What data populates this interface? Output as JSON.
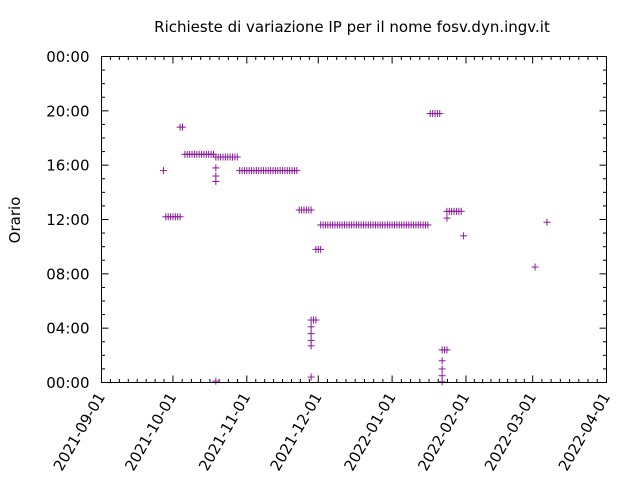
{
  "chart_data": {
    "type": "scatter",
    "title": "Richieste di variazione IP per il nome fosv.dyn.ingv.it",
    "xlabel": "",
    "ylabel": "Orario",
    "marker": "+",
    "marker_color": "#8b1a9b",
    "grid": false,
    "xlim": [
      "2021-09-01",
      "2022-04-01"
    ],
    "ylim": [
      "00:00",
      "24:00"
    ],
    "x_ticks": [
      "2021-09-01",
      "2021-10-01",
      "2021-11-01",
      "2021-12-01",
      "2022-01-01",
      "2022-02-01",
      "2022-03-01",
      "2022-04-01"
    ],
    "y_ticks": [
      "00:00",
      "04:00",
      "08:00",
      "12:00",
      "16:00",
      "20:00",
      "00:00"
    ],
    "points": [
      [
        "2021-09-27",
        15.6
      ],
      [
        "2021-09-28",
        12.2
      ],
      [
        "2021-09-29",
        12.2
      ],
      [
        "2021-09-30",
        12.2
      ],
      [
        "2021-10-01",
        12.2
      ],
      [
        "2021-10-02",
        12.2
      ],
      [
        "2021-10-03",
        12.2
      ],
      [
        "2021-10-04",
        12.2
      ],
      [
        "2021-10-04",
        18.8
      ],
      [
        "2021-10-05",
        18.8
      ],
      [
        "2021-10-06",
        16.8
      ],
      [
        "2021-10-07",
        16.8
      ],
      [
        "2021-10-08",
        16.8
      ],
      [
        "2021-10-09",
        16.8
      ],
      [
        "2021-10-10",
        16.8
      ],
      [
        "2021-10-11",
        16.8
      ],
      [
        "2021-10-12",
        16.8
      ],
      [
        "2021-10-13",
        16.8
      ],
      [
        "2021-10-14",
        16.8
      ],
      [
        "2021-10-15",
        16.8
      ],
      [
        "2021-10-16",
        16.8
      ],
      [
        "2021-10-17",
        16.8
      ],
      [
        "2021-10-18",
        16.8
      ],
      [
        "2021-10-19",
        16.6
      ],
      [
        "2021-10-20",
        16.6
      ],
      [
        "2021-10-21",
        16.6
      ],
      [
        "2021-10-22",
        16.6
      ],
      [
        "2021-10-23",
        16.6
      ],
      [
        "2021-10-24",
        16.6
      ],
      [
        "2021-10-25",
        16.6
      ],
      [
        "2021-10-26",
        16.6
      ],
      [
        "2021-10-27",
        16.6
      ],
      [
        "2021-10-28",
        16.6
      ],
      [
        "2021-10-19",
        15.8
      ],
      [
        "2021-10-19",
        15.2
      ],
      [
        "2021-10-19",
        14.8
      ],
      [
        "2021-10-19",
        0.1
      ],
      [
        "2021-10-29",
        15.6
      ],
      [
        "2021-10-30",
        15.6
      ],
      [
        "2021-10-31",
        15.6
      ],
      [
        "2021-11-01",
        15.6
      ],
      [
        "2021-11-02",
        15.6
      ],
      [
        "2021-11-03",
        15.6
      ],
      [
        "2021-11-04",
        15.6
      ],
      [
        "2021-11-05",
        15.6
      ],
      [
        "2021-11-06",
        15.6
      ],
      [
        "2021-11-07",
        15.6
      ],
      [
        "2021-11-08",
        15.6
      ],
      [
        "2021-11-09",
        15.6
      ],
      [
        "2021-11-10",
        15.6
      ],
      [
        "2021-11-11",
        15.6
      ],
      [
        "2021-11-12",
        15.6
      ],
      [
        "2021-11-13",
        15.6
      ],
      [
        "2021-11-14",
        15.6
      ],
      [
        "2021-11-15",
        15.6
      ],
      [
        "2021-11-16",
        15.6
      ],
      [
        "2021-11-17",
        15.6
      ],
      [
        "2021-11-18",
        15.6
      ],
      [
        "2021-11-19",
        15.6
      ],
      [
        "2021-11-20",
        15.6
      ],
      [
        "2021-11-21",
        15.6
      ],
      [
        "2021-11-22",
        15.6
      ],
      [
        "2021-11-23",
        12.7
      ],
      [
        "2021-11-24",
        12.7
      ],
      [
        "2021-11-25",
        12.7
      ],
      [
        "2021-11-26",
        12.7
      ],
      [
        "2021-11-27",
        12.7
      ],
      [
        "2021-11-28",
        12.7
      ],
      [
        "2021-11-28",
        0.4
      ],
      [
        "2021-11-28",
        4.6
      ],
      [
        "2021-11-29",
        4.6
      ],
      [
        "2021-11-30",
        4.6
      ],
      [
        "2021-11-28",
        4.1
      ],
      [
        "2021-11-28",
        3.6
      ],
      [
        "2021-11-28",
        3.1
      ],
      [
        "2021-11-28",
        2.7
      ],
      [
        "2021-11-30",
        9.8
      ],
      [
        "2021-12-01",
        9.8
      ],
      [
        "2021-12-02",
        9.8
      ],
      [
        "2021-12-02",
        11.6
      ],
      [
        "2021-12-03",
        11.6
      ],
      [
        "2021-12-04",
        11.6
      ],
      [
        "2021-12-05",
        11.6
      ],
      [
        "2021-12-06",
        11.6
      ],
      [
        "2021-12-07",
        11.6
      ],
      [
        "2021-12-08",
        11.6
      ],
      [
        "2021-12-09",
        11.6
      ],
      [
        "2021-12-10",
        11.6
      ],
      [
        "2021-12-11",
        11.6
      ],
      [
        "2021-12-12",
        11.6
      ],
      [
        "2021-12-13",
        11.6
      ],
      [
        "2021-12-14",
        11.6
      ],
      [
        "2021-12-15",
        11.6
      ],
      [
        "2021-12-16",
        11.6
      ],
      [
        "2021-12-17",
        11.6
      ],
      [
        "2021-12-18",
        11.6
      ],
      [
        "2021-12-19",
        11.6
      ],
      [
        "2021-12-20",
        11.6
      ],
      [
        "2021-12-21",
        11.6
      ],
      [
        "2021-12-22",
        11.6
      ],
      [
        "2021-12-23",
        11.6
      ],
      [
        "2021-12-24",
        11.6
      ],
      [
        "2021-12-25",
        11.6
      ],
      [
        "2021-12-26",
        11.6
      ],
      [
        "2021-12-27",
        11.6
      ],
      [
        "2021-12-28",
        11.6
      ],
      [
        "2021-12-29",
        11.6
      ],
      [
        "2021-12-30",
        11.6
      ],
      [
        "2021-12-31",
        11.6
      ],
      [
        "2022-01-01",
        11.6
      ],
      [
        "2022-01-02",
        11.6
      ],
      [
        "2022-01-03",
        11.6
      ],
      [
        "2022-01-04",
        11.6
      ],
      [
        "2022-01-05",
        11.6
      ],
      [
        "2022-01-06",
        11.6
      ],
      [
        "2022-01-07",
        11.6
      ],
      [
        "2022-01-08",
        11.6
      ],
      [
        "2022-01-09",
        11.6
      ],
      [
        "2022-01-10",
        11.6
      ],
      [
        "2022-01-11",
        11.6
      ],
      [
        "2022-01-12",
        11.6
      ],
      [
        "2022-01-13",
        11.6
      ],
      [
        "2022-01-14",
        11.6
      ],
      [
        "2022-01-15",
        11.6
      ],
      [
        "2022-01-16",
        11.6
      ],
      [
        "2022-01-17",
        19.8
      ],
      [
        "2022-01-18",
        19.8
      ],
      [
        "2022-01-19",
        19.8
      ],
      [
        "2022-01-20",
        19.8
      ],
      [
        "2022-01-21",
        19.8
      ],
      [
        "2022-01-22",
        2.4
      ],
      [
        "2022-01-23",
        2.4
      ],
      [
        "2022-01-24",
        2.4
      ],
      [
        "2022-01-22",
        1.6
      ],
      [
        "2022-01-22",
        1.0
      ],
      [
        "2022-01-22",
        0.5
      ],
      [
        "2022-01-22",
        0.05
      ],
      [
        "2022-01-24",
        12.6
      ],
      [
        "2022-01-25",
        12.6
      ],
      [
        "2022-01-26",
        12.6
      ],
      [
        "2022-01-27",
        12.6
      ],
      [
        "2022-01-28",
        12.6
      ],
      [
        "2022-01-29",
        12.6
      ],
      [
        "2022-01-30",
        12.6
      ],
      [
        "2022-01-24",
        12.1
      ],
      [
        "2022-01-31",
        10.8
      ],
      [
        "2022-03-02",
        8.5
      ],
      [
        "2022-03-07",
        11.8
      ]
    ]
  }
}
